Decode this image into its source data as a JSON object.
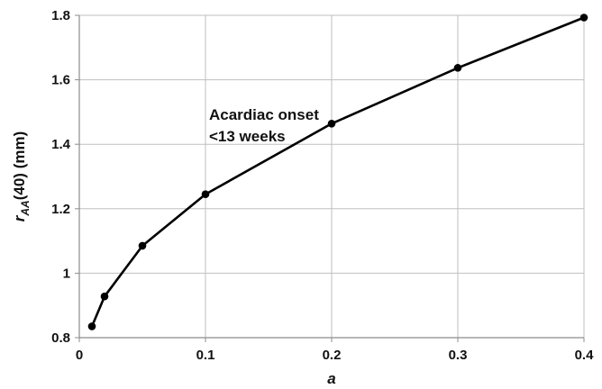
{
  "chart_data": {
    "type": "line",
    "xlabel": "a",
    "ylabel": {
      "prefix": "r",
      "subscript": "AA",
      "suffix": "(40) (mm)"
    },
    "xlim": [
      0,
      0.4
    ],
    "ylim": [
      0.8,
      1.8
    ],
    "xticks": [
      "0",
      "0.1",
      "0.2",
      "0.3",
      "0.4"
    ],
    "yticks": [
      "0.8",
      "1",
      "1.2",
      "1.4",
      "1.6",
      "1.8"
    ],
    "grid": true,
    "legend": "none",
    "annotation": {
      "lines": [
        "Acardiac onset",
        "<13 weeks"
      ]
    },
    "series": [
      {
        "x": [
          0.01,
          0.02,
          0.05,
          0.1,
          0.2,
          0.3,
          0.4
        ],
        "y": [
          0.835,
          0.928,
          1.085,
          1.245,
          1.464,
          1.637,
          1.793
        ]
      }
    ],
    "colors": {
      "line": "#000000",
      "marker": "#000000",
      "grid": "#bfbfbf",
      "axis": "#8c8c8c"
    }
  }
}
